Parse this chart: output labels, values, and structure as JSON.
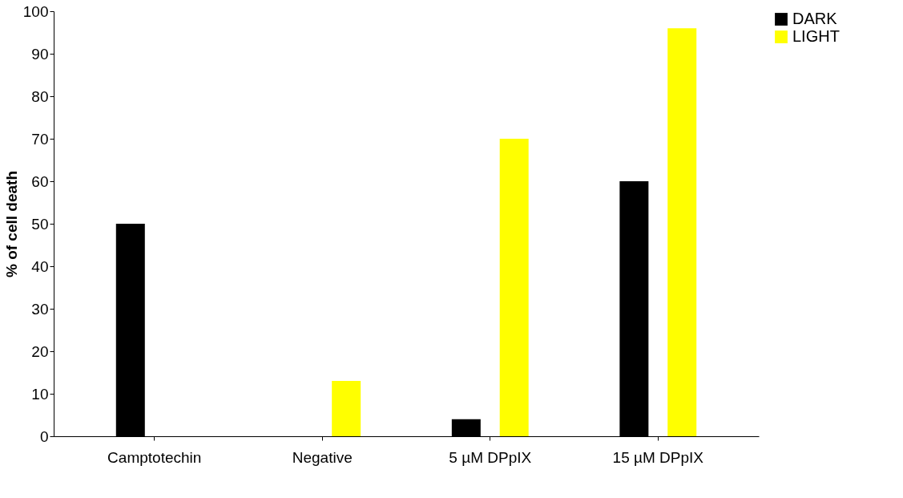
{
  "chart_data": {
    "type": "bar",
    "ylabel": "% of cell death",
    "categories": [
      "Camptotechin",
      "Negative",
      "5 µM DPpIX",
      "15 µM DPpIX"
    ],
    "series": [
      {
        "name": "DARK",
        "color": "#000000",
        "values": [
          50,
          0,
          4,
          60
        ]
      },
      {
        "name": "LIGHT",
        "color": "#ffff00",
        "values": [
          0,
          13,
          70,
          96
        ]
      }
    ],
    "ylim": [
      0,
      100
    ],
    "yticks": [
      0,
      10,
      20,
      30,
      40,
      50,
      60,
      70,
      80,
      90,
      100
    ],
    "grid": false,
    "legend": "right"
  }
}
